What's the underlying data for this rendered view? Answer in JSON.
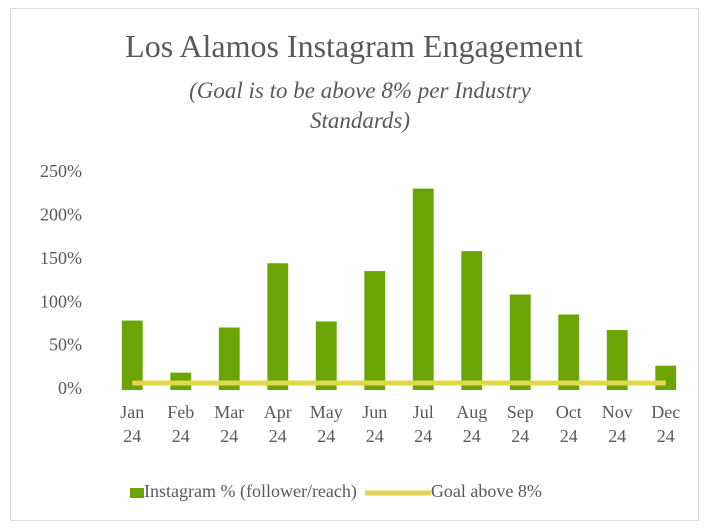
{
  "chart_data": {
    "type": "bar",
    "title": "Los Alamos Instagram Engagement",
    "subtitle": "(Goal is to be above 8% per Industry Standards)",
    "categories": [
      "Jan 24",
      "Feb 24",
      "Mar 24",
      "Apr 24",
      "May 24",
      "Jun 24",
      "Jul 24",
      "Aug 24",
      "Sep 24",
      "Oct 24",
      "Nov 24",
      "Dec 24"
    ],
    "series": [
      {
        "name": "Instagram % (follower/reach)",
        "type": "bar",
        "color": "#6aa405",
        "values": [
          80,
          20,
          72,
          146,
          79,
          137,
          232,
          160,
          110,
          87,
          69,
          28
        ]
      },
      {
        "name": "Goal above 8%",
        "type": "line",
        "color": "#e2d64b",
        "values": [
          8,
          8,
          8,
          8,
          8,
          8,
          8,
          8,
          8,
          8,
          8,
          8
        ]
      }
    ],
    "ylim": [
      0,
      250
    ],
    "yticks": [
      {
        "value": 0,
        "label": "0%"
      },
      {
        "value": 50,
        "label": "50%"
      },
      {
        "value": 100,
        "label": "100%"
      },
      {
        "value": 150,
        "label": "150%"
      },
      {
        "value": 200,
        "label": "200%"
      },
      {
        "value": 250,
        "label": "250%"
      }
    ],
    "legend": "bottom"
  }
}
